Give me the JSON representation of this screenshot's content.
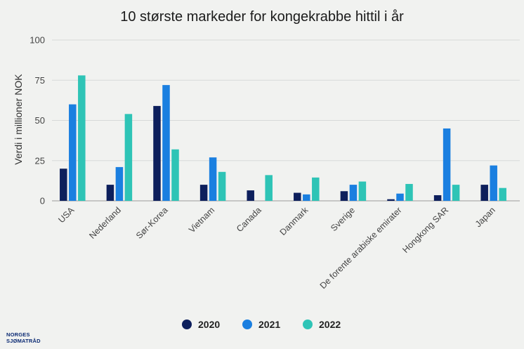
{
  "chart_data": {
    "type": "bar",
    "title": "10 største markeder for kongekrabbe hittil i år",
    "ylabel": "Verdi i millioner NOK",
    "xlabel": "",
    "ylim": [
      0,
      100
    ],
    "yticks": [
      0,
      25,
      50,
      75,
      100
    ],
    "grid": true,
    "legend_position": "bottom",
    "categories": [
      "USA",
      "Nederland",
      "Sør-Korea",
      "Vietnam",
      "Canada",
      "Danmark",
      "Sverige",
      "De forente arabiske emirater",
      "Hongkong SAR",
      "Japan"
    ],
    "series": [
      {
        "name": "2020",
        "color": "#0d1f5c",
        "values": [
          20,
          10,
          59,
          10,
          6.5,
          5,
          6,
          1,
          3.5,
          10
        ]
      },
      {
        "name": "2021",
        "color": "#1a7fe0",
        "values": [
          60,
          21,
          72,
          27,
          0,
          4,
          10,
          4.5,
          45,
          22
        ]
      },
      {
        "name": "2022",
        "color": "#2ec4b6",
        "values": [
          78,
          54,
          32,
          18,
          16,
          14.5,
          12,
          10.5,
          10,
          8
        ]
      }
    ]
  },
  "logo": {
    "line1": "NORGES",
    "line2": "SJØMATRÅD"
  }
}
